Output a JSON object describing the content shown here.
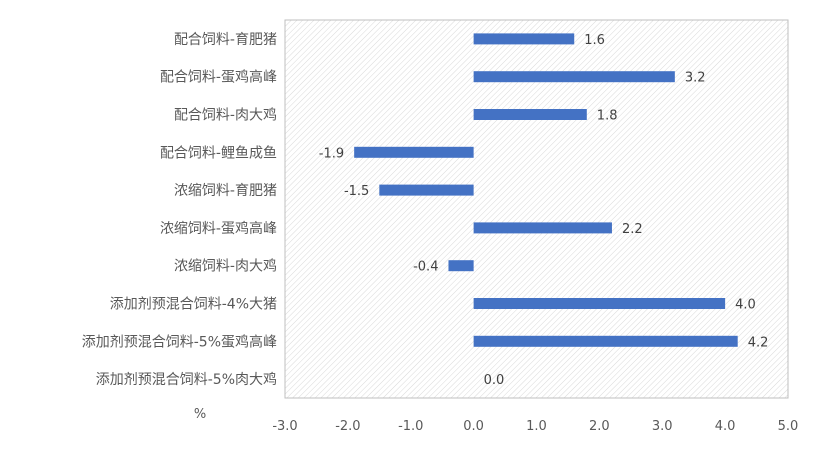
{
  "chart_data": {
    "type": "bar",
    "orientation": "horizontal",
    "categories": [
      "配合饲料-育肥猪",
      "配合饲料-蛋鸡高峰",
      "配合饲料-肉大鸡",
      "配合饲料-鲤鱼成鱼",
      "浓缩饲料-育肥猪",
      "浓缩饲料-蛋鸡高峰",
      "浓缩饲料-肉大鸡",
      "添加剂预混合饲料-4%大猪",
      "添加剂预混合饲料-5%蛋鸡高峰",
      "添加剂预混合饲料-5%肉大鸡"
    ],
    "values": [
      1.6,
      3.2,
      1.8,
      -1.9,
      -1.5,
      2.2,
      -0.4,
      4.0,
      4.2,
      0.0
    ],
    "data_labels": [
      "1.6",
      "3.2",
      "1.8",
      "-1.9",
      "-1.5",
      "2.2",
      "-0.4",
      "4.0",
      "4.2",
      "0.0"
    ],
    "xlim": [
      -3.0,
      5.0
    ],
    "x_ticks": [
      "-3.0",
      "-2.0",
      "-1.0",
      "0.0",
      "1.0",
      "2.0",
      "3.0",
      "4.0",
      "5.0"
    ],
    "x_tick_values": [
      -3,
      -2,
      -1,
      0,
      1,
      2,
      3,
      4,
      5
    ],
    "unit_label": "%",
    "title": "",
    "xlabel": "",
    "ylabel": "",
    "grid": "hatched-plot-area",
    "legend": "none",
    "colors": {
      "bar": "#4472C4",
      "hatch": "#d9d9d9",
      "border": "#bfbfbf",
      "text": "#595959"
    }
  }
}
